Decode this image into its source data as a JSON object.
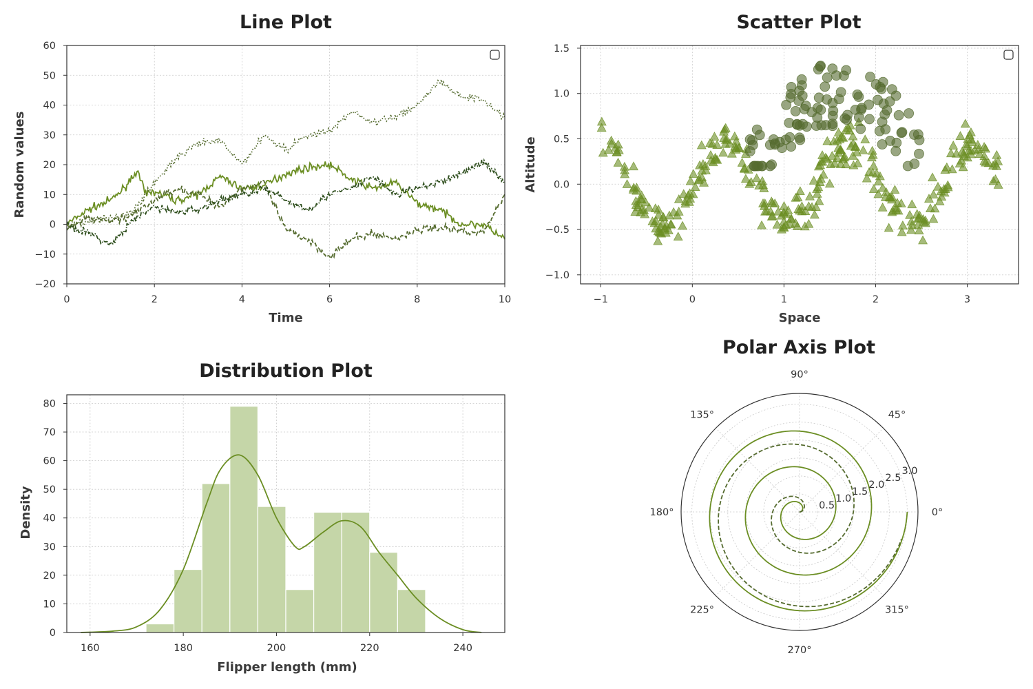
{
  "colors": {
    "c1": "#6b8e23",
    "c2": "#556b2f",
    "c3": "#2f4f1e",
    "c4": "#7a9a3a",
    "hist_fill": "#c5d6a8",
    "grid": "#c9c9c9",
    "frame": "#333333"
  },
  "chart_data": [
    {
      "id": "line",
      "type": "line",
      "title": "Line Plot",
      "xlabel": "Time",
      "ylabel": "Random values",
      "xlim": [
        0,
        10
      ],
      "ylim": [
        -20,
        60
      ],
      "xticks": [
        "0",
        "2",
        "4",
        "6",
        "8",
        "10"
      ],
      "yticks": [
        "−20",
        "−10",
        "0",
        "10",
        "20",
        "30",
        "40",
        "50",
        "60"
      ],
      "grid": true,
      "legend": "top-right (empty)",
      "series": [
        {
          "style": "solid",
          "color": "#6b8e23",
          "x": [
            0,
            0.5,
            1,
            1.3,
            1.6,
            1.8,
            2,
            2.5,
            3,
            3.5,
            4,
            4.5,
            5,
            5.5,
            6,
            6.5,
            7,
            7.5,
            8,
            8.5,
            9,
            9.5,
            10
          ],
          "y": [
            0,
            5,
            8,
            12,
            18,
            10,
            11,
            8,
            10,
            16,
            12,
            13,
            17,
            19,
            20,
            15,
            12,
            14,
            7,
            5,
            0,
            0,
            -5
          ]
        },
        {
          "style": "dashed",
          "color": "#556b2f",
          "x": [
            0,
            0.5,
            1,
            1.5,
            2,
            2.5,
            3,
            3.5,
            4,
            4.5,
            5,
            5.5,
            6,
            6.5,
            7,
            7.5,
            8,
            8.5,
            9,
            9.5,
            10
          ],
          "y": [
            -2,
            2,
            1,
            3,
            8,
            12,
            10,
            6,
            12,
            14,
            -2,
            -5,
            -11,
            -5,
            -3,
            -5,
            -2,
            -1,
            -2,
            -3,
            10
          ]
        },
        {
          "style": "dashdot",
          "color": "#2f4f1e",
          "x": [
            0,
            0.5,
            1,
            1.5,
            2,
            2.5,
            3,
            3.5,
            4,
            4.5,
            5,
            5.5,
            6,
            6.5,
            7,
            7.5,
            8,
            8.5,
            9,
            9.5,
            10
          ],
          "y": [
            0,
            -3,
            -7,
            1,
            6,
            4,
            5,
            8,
            10,
            12,
            8,
            5,
            10,
            12,
            16,
            10,
            12,
            14,
            17,
            21,
            14
          ]
        },
        {
          "style": "dotted",
          "color": "#556b2f",
          "x": [
            0,
            0.5,
            1,
            1.5,
            2,
            2.5,
            3,
            3.5,
            4,
            4.5,
            5,
            5.5,
            6,
            6.5,
            7,
            7.5,
            8,
            8.5,
            9,
            9.5,
            10
          ],
          "y": [
            0,
            1,
            2,
            4,
            14,
            22,
            27,
            28,
            20,
            30,
            25,
            30,
            31,
            38,
            34,
            36,
            40,
            48,
            43,
            42,
            36
          ]
        }
      ]
    },
    {
      "id": "scatter",
      "type": "scatter",
      "title": "Scatter Plot",
      "xlabel": "Space",
      "ylabel": "Altitude",
      "xlim": [
        -1.22,
        3.56
      ],
      "ylim": [
        -1.1,
        1.53
      ],
      "xticks": [
        "−1",
        "0",
        "1",
        "2",
        "3"
      ],
      "yticks": [
        "−1.0",
        "−0.5",
        "0.0",
        "0.5",
        "1.0",
        "1.5"
      ],
      "grid": true,
      "legend": "top-right (empty)",
      "series": [
        {
          "marker": "circle",
          "color": "#556b2f",
          "note": "upper arc cluster",
          "x_range": [
            0.6,
            2.5
          ],
          "y_range": [
            0.2,
            1.4
          ]
        },
        {
          "marker": "triangle",
          "color": "#6b8e23",
          "note": "sinusoidal band",
          "x_range": [
            -1.0,
            3.35
          ],
          "y_range": [
            -0.95,
            0.98
          ]
        }
      ]
    },
    {
      "id": "dist",
      "type": "bar",
      "title": "Distribution Plot",
      "xlabel": "Flipper length (mm)",
      "ylabel": "Density",
      "xlim": [
        155,
        249
      ],
      "ylim": [
        0,
        83
      ],
      "xticks": [
        "160",
        "180",
        "200",
        "220",
        "240"
      ],
      "yticks": [
        "0",
        "10",
        "20",
        "30",
        "40",
        "50",
        "60",
        "70",
        "80"
      ],
      "grid": true,
      "bins": [
        {
          "x0": 172,
          "x1": 178,
          "value": 3
        },
        {
          "x0": 178,
          "x1": 184,
          "value": 22
        },
        {
          "x0": 184,
          "x1": 190,
          "value": 52
        },
        {
          "x0": 190,
          "x1": 196,
          "value": 79
        },
        {
          "x0": 196,
          "x1": 202,
          "value": 44
        },
        {
          "x0": 202,
          "x1": 208,
          "value": 15
        },
        {
          "x0": 208,
          "x1": 214,
          "value": 42
        },
        {
          "x0": 214,
          "x1": 220,
          "value": 42
        },
        {
          "x0": 220,
          "x1": 226,
          "value": 28
        },
        {
          "x0": 226,
          "x1": 232,
          "value": 15
        }
      ],
      "kde": {
        "x": [
          158,
          165,
          170,
          175,
          180,
          185,
          188,
          192,
          196,
          200,
          204,
          206,
          210,
          214,
          218,
          222,
          226,
          230,
          235,
          240,
          244
        ],
        "y": [
          0,
          0.5,
          2,
          8,
          22,
          45,
          57,
          62,
          55,
          40,
          30,
          30,
          35,
          39,
          37,
          28,
          20,
          12,
          5,
          1,
          0
        ]
      }
    },
    {
      "id": "polar",
      "type": "line",
      "title": "Polar Axis Plot",
      "rlim": [
        0,
        3.3
      ],
      "rticks": [
        "0.5",
        "1.0",
        "1.5",
        "2.0",
        "2.5",
        "3.0"
      ],
      "angle_labels": [
        "0°",
        "45°",
        "90°",
        "135°",
        "180°",
        "225°",
        "270°",
        "315°"
      ],
      "series": [
        {
          "style": "solid",
          "color": "#6b8e23",
          "r_per_turn": 1.0,
          "theta_max_deg": 1080
        },
        {
          "style": "dashed",
          "color": "#556b2f",
          "r_per_turn": 1.5,
          "theta_max_deg": 705
        }
      ]
    }
  ]
}
